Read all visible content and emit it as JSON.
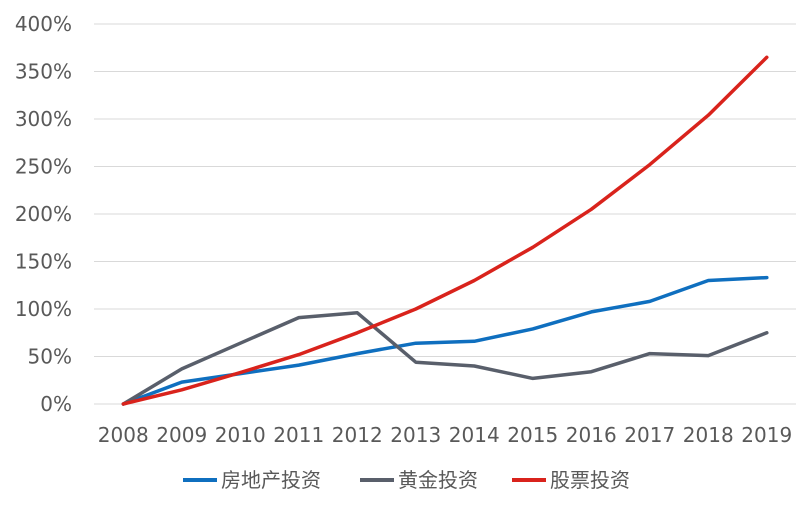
{
  "chart_data": {
    "type": "line",
    "title": "",
    "xlabel": "",
    "ylabel": "",
    "x": [
      "2008",
      "2009",
      "2010",
      "2011",
      "2012",
      "2013",
      "2014",
      "2015",
      "2016",
      "2017",
      "2018",
      "2019"
    ],
    "ylim": [
      0,
      400
    ],
    "yticks": [
      0,
      50,
      100,
      150,
      200,
      250,
      300,
      350,
      400
    ],
    "ytick_labels": [
      "0%",
      "50%",
      "100%",
      "150%",
      "200%",
      "250%",
      "300%",
      "350%",
      "400%"
    ],
    "grid": true,
    "legend_position": "bottom",
    "series": [
      {
        "name": "房地产投资",
        "color": "#0F6FBF",
        "values": [
          0,
          23,
          32,
          41,
          53,
          64,
          66,
          79,
          97,
          108,
          130,
          133
        ]
      },
      {
        "name": "黄金投资",
        "color": "#595F6B",
        "values": [
          0,
          37,
          64,
          91,
          96,
          44,
          40,
          27,
          34,
          53,
          51,
          75
        ]
      },
      {
        "name": "股票投资",
        "color": "#D9231C",
        "values": [
          0,
          15,
          33,
          52,
          75,
          100,
          130,
          165,
          205,
          252,
          304,
          365
        ]
      }
    ]
  }
}
